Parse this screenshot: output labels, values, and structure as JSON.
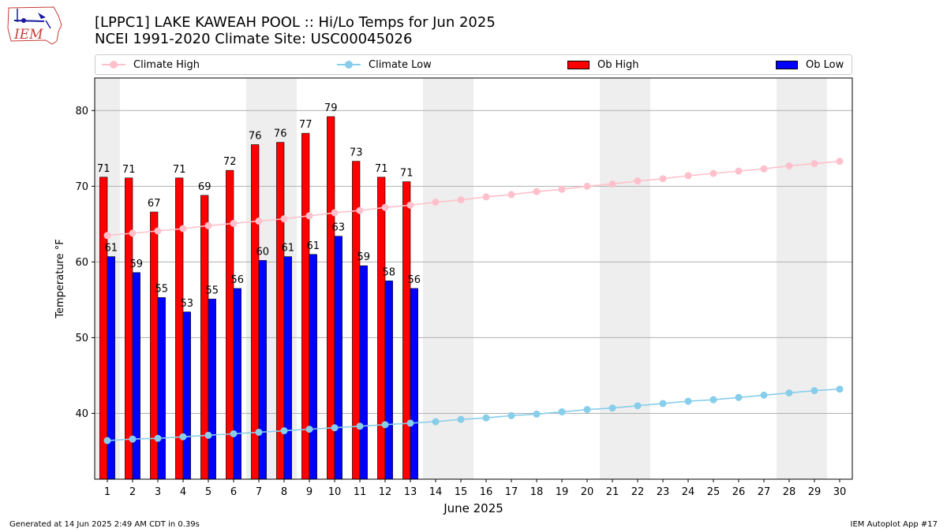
{
  "header": {
    "title_line1": "[LPPC1] LAKE KAWEAH POOL :: Hi/Lo Temps for Jun 2025",
    "title_line2": "NCEI 1991-2020 Climate Site: USC00045026",
    "logo_text": "IEM"
  },
  "legend": {
    "climate_high": "Climate High",
    "climate_low": "Climate Low",
    "ob_high": "Ob High",
    "ob_low": "Ob Low"
  },
  "colors": {
    "climate_high": "#ffc0cb",
    "climate_low": "#87ceeb",
    "ob_high": "#ff0000",
    "ob_low": "#0000ff",
    "weekend_band": "#eeeeee",
    "grid": "#b0b0b0"
  },
  "footer": {
    "generated": "Generated at 14 Jun 2025 2:49 AM CDT in 0.39s",
    "app": "IEM Autoplot App #17"
  },
  "chart_data": {
    "type": "bar",
    "title": "[LPPC1] LAKE KAWEAH POOL :: Hi/Lo Temps for Jun 2025",
    "xlabel": "June 2025",
    "ylabel": "Temperature °F",
    "ylim": [
      31.3,
      84.3
    ],
    "yticks": [
      40,
      50,
      60,
      70,
      80
    ],
    "xlim": [
      0.5,
      30.5
    ],
    "days": [
      1,
      2,
      3,
      4,
      5,
      6,
      7,
      8,
      9,
      10,
      11,
      12,
      13,
      14,
      15,
      16,
      17,
      18,
      19,
      20,
      21,
      22,
      23,
      24,
      25,
      26,
      27,
      28,
      29,
      30
    ],
    "weekend_days": [
      1,
      7,
      8,
      14,
      15,
      21,
      22,
      28,
      29
    ],
    "grid": true,
    "legend_position": "top",
    "ob_high": {
      "name": "Ob High",
      "values": [
        71.2,
        71.1,
        66.6,
        71.1,
        68.8,
        72.1,
        75.5,
        75.8,
        77.0,
        79.2,
        73.3,
        71.2,
        70.6
      ],
      "labels": [
        "71",
        "71",
        "67",
        "71",
        "69",
        "72",
        "76",
        "76",
        "77",
        "79",
        "73",
        "71",
        "71"
      ]
    },
    "ob_low": {
      "name": "Ob Low",
      "values": [
        60.7,
        58.6,
        55.3,
        53.4,
        55.1,
        56.5,
        60.2,
        60.7,
        61.0,
        63.4,
        59.5,
        57.5,
        56.5
      ],
      "labels": [
        "61",
        "59",
        "55",
        "53",
        "55",
        "56",
        "60",
        "61",
        "61",
        "63",
        "59",
        "58",
        "56"
      ]
    },
    "climate_high": {
      "name": "Climate High",
      "values": [
        63.5,
        63.8,
        64.1,
        64.4,
        64.8,
        65.1,
        65.4,
        65.7,
        66.1,
        66.5,
        66.8,
        67.2,
        67.5,
        67.9,
        68.2,
        68.6,
        68.9,
        69.3,
        69.6,
        70.0,
        70.3,
        70.7,
        71.0,
        71.4,
        71.7,
        72.0,
        72.3,
        72.7,
        73.0,
        73.3
      ]
    },
    "climate_low": {
      "name": "Climate Low",
      "values": [
        36.4,
        36.6,
        36.7,
        36.9,
        37.1,
        37.3,
        37.5,
        37.7,
        37.9,
        38.1,
        38.3,
        38.5,
        38.7,
        38.9,
        39.2,
        39.4,
        39.7,
        39.9,
        40.2,
        40.5,
        40.7,
        41.0,
        41.3,
        41.6,
        41.8,
        42.1,
        42.4,
        42.7,
        43.0,
        43.2
      ]
    }
  }
}
